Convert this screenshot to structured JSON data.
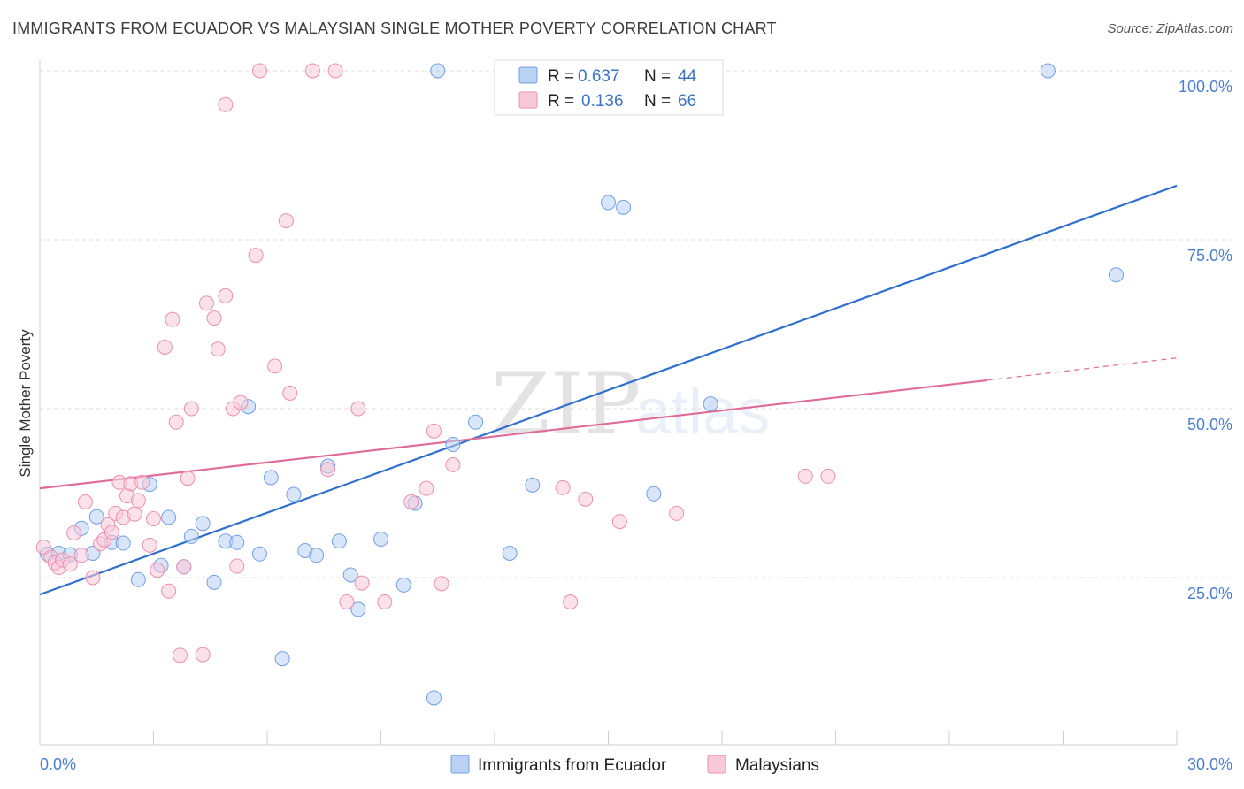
{
  "header": {
    "title": "IMMIGRANTS FROM ECUADOR VS MALAYSIAN SINGLE MOTHER POVERTY CORRELATION CHART",
    "source": "Source: ZipAtlas.com"
  },
  "watermark": {
    "zip": "ZIP",
    "atlas": "atlas"
  },
  "legend": {
    "rows": [
      {
        "r_label": "R = ",
        "r_value": "0.637",
        "n_label": "N = ",
        "n_value": "44",
        "color": "#9bbfee"
      },
      {
        "r_label": "R = ",
        "r_value": "0.136",
        "n_label": "N = ",
        "n_value": "66",
        "color": "#f4aec6"
      }
    ]
  },
  "bottom_legend": {
    "items": [
      {
        "label": "Immigrants from Ecuador",
        "color": "#9bbfee"
      },
      {
        "label": "Malaysians",
        "color": "#f4aec6"
      }
    ]
  },
  "chart_data": {
    "type": "scatter",
    "title": "IMMIGRANTS FROM ECUADOR VS MALAYSIAN SINGLE MOTHER POVERTY CORRELATION CHART",
    "xlabel": "",
    "ylabel": "Single Mother Poverty",
    "xlim": [
      0,
      30
    ],
    "ylim": [
      0,
      102
    ],
    "x_tick_labels": [
      "0.0%",
      "30.0%"
    ],
    "y_ticks": [
      25,
      50,
      75,
      100
    ],
    "y_tick_labels": [
      "25.0%",
      "50.0%",
      "75.0%",
      "100.0%"
    ],
    "grid": "horizontal dashed",
    "legend_position": "top-center",
    "series": [
      {
        "name": "Immigrants from Ecuador",
        "color": "#6fa0e6",
        "fill": "#b9d2f4",
        "trend": {
          "x": [
            0,
            30
          ],
          "y": [
            22.5,
            83.0
          ],
          "style": "solid"
        },
        "points": [
          [
            0.2,
            28.5
          ],
          [
            0.5,
            28.6
          ],
          [
            0.8,
            28.4
          ],
          [
            1.1,
            32.3
          ],
          [
            1.4,
            28.6
          ],
          [
            1.5,
            34.0
          ],
          [
            1.9,
            30.2
          ],
          [
            2.2,
            30.1
          ],
          [
            2.6,
            24.7
          ],
          [
            2.9,
            38.8
          ],
          [
            3.2,
            26.8
          ],
          [
            3.4,
            33.9
          ],
          [
            3.8,
            26.6
          ],
          [
            4.0,
            31.1
          ],
          [
            4.3,
            33.0
          ],
          [
            4.6,
            24.3
          ],
          [
            4.9,
            30.4
          ],
          [
            5.2,
            30.2
          ],
          [
            5.5,
            50.3
          ],
          [
            5.8,
            28.5
          ],
          [
            6.1,
            39.8
          ],
          [
            6.4,
            13.0
          ],
          [
            6.7,
            37.3
          ],
          [
            7.0,
            29.0
          ],
          [
            7.3,
            28.3
          ],
          [
            7.6,
            41.5
          ],
          [
            7.9,
            30.4
          ],
          [
            8.2,
            25.4
          ],
          [
            8.4,
            20.3
          ],
          [
            9.0,
            30.7
          ],
          [
            9.6,
            23.9
          ],
          [
            9.9,
            36.0
          ],
          [
            10.4,
            7.2
          ],
          [
            10.5,
            100.0
          ],
          [
            10.9,
            44.7
          ],
          [
            11.5,
            48.0
          ],
          [
            12.4,
            28.6
          ],
          [
            13.0,
            38.7
          ],
          [
            15.0,
            80.5
          ],
          [
            15.4,
            79.8
          ],
          [
            16.2,
            37.4
          ],
          [
            17.7,
            50.7
          ],
          [
            26.6,
            100.0
          ],
          [
            28.4,
            69.8
          ]
        ]
      },
      {
        "name": "Malaysians",
        "color": "#ec8fb0",
        "fill": "#f8c9d9",
        "trend": {
          "x": [
            0,
            25
          ],
          "y": [
            38.2,
            54.2
          ],
          "x_dashed": [
            25,
            30
          ],
          "y_dashed": [
            54.2,
            57.5
          ],
          "style": "solid then dashed"
        },
        "points": [
          [
            0.1,
            29.5
          ],
          [
            0.3,
            28.0
          ],
          [
            0.4,
            27.2
          ],
          [
            0.5,
            26.5
          ],
          [
            0.6,
            27.6
          ],
          [
            0.8,
            27.0
          ],
          [
            0.9,
            31.6
          ],
          [
            1.1,
            28.3
          ],
          [
            1.2,
            36.2
          ],
          [
            1.4,
            25.0
          ],
          [
            1.6,
            30.0
          ],
          [
            1.7,
            30.6
          ],
          [
            1.8,
            32.8
          ],
          [
            1.9,
            31.7
          ],
          [
            2.0,
            34.5
          ],
          [
            2.1,
            39.1
          ],
          [
            2.2,
            33.9
          ],
          [
            2.3,
            37.1
          ],
          [
            2.4,
            38.9
          ],
          [
            2.5,
            34.4
          ],
          [
            2.6,
            36.4
          ],
          [
            2.7,
            39.1
          ],
          [
            2.9,
            29.8
          ],
          [
            3.0,
            33.7
          ],
          [
            3.1,
            26.1
          ],
          [
            3.3,
            59.1
          ],
          [
            3.4,
            23.0
          ],
          [
            3.5,
            63.2
          ],
          [
            3.6,
            48.0
          ],
          [
            3.7,
            13.5
          ],
          [
            3.8,
            26.6
          ],
          [
            3.9,
            39.7
          ],
          [
            4.0,
            50.0
          ],
          [
            4.3,
            13.6
          ],
          [
            4.4,
            65.6
          ],
          [
            4.6,
            63.4
          ],
          [
            4.7,
            58.8
          ],
          [
            4.9,
            66.7
          ],
          [
            4.9,
            95.0
          ],
          [
            5.1,
            50.0
          ],
          [
            5.2,
            26.7
          ],
          [
            5.3,
            50.9
          ],
          [
            5.7,
            72.7
          ],
          [
            5.8,
            100.0
          ],
          [
            6.2,
            56.3
          ],
          [
            6.5,
            77.8
          ],
          [
            6.6,
            52.3
          ],
          [
            7.2,
            100.0
          ],
          [
            7.6,
            41.0
          ],
          [
            7.8,
            100.0
          ],
          [
            8.1,
            21.4
          ],
          [
            8.4,
            50.0
          ],
          [
            8.5,
            24.2
          ],
          [
            9.1,
            21.4
          ],
          [
            9.8,
            36.2
          ],
          [
            10.2,
            38.2
          ],
          [
            10.4,
            46.7
          ],
          [
            10.6,
            24.1
          ],
          [
            10.9,
            41.7
          ],
          [
            13.8,
            38.3
          ],
          [
            14.0,
            21.4
          ],
          [
            14.4,
            36.6
          ],
          [
            15.3,
            33.3
          ],
          [
            16.8,
            34.5
          ],
          [
            20.2,
            40.0
          ],
          [
            20.8,
            40.0
          ]
        ]
      }
    ]
  }
}
